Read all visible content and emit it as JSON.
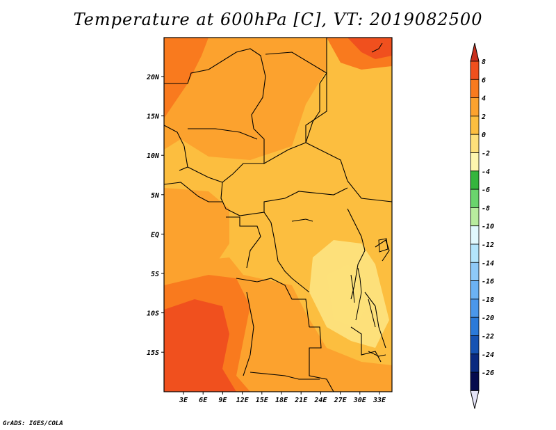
{
  "title": "Temperature at 600hPa [C], VT: 2019082500",
  "credit": "GrADS: IGES/COLA",
  "map": {
    "lat_labels": [
      "20N",
      "15N",
      "10N",
      "5N",
      "EQ",
      "5S",
      "10S",
      "15S"
    ],
    "lon_labels": [
      "3E",
      "6E",
      "9E",
      "12E",
      "15E",
      "18E",
      "21E",
      "24E",
      "27E",
      "30E",
      "33E"
    ],
    "lat_range": [
      -19.5,
      24.5
    ],
    "lon_range": [
      0,
      35
    ]
  },
  "colorbar": {
    "labels": [
      "8",
      "6",
      "4",
      "2",
      "0",
      "-2",
      "-4",
      "-6",
      "-8",
      "-10",
      "-12",
      "-14",
      "-16",
      "-18",
      "-20",
      "-22",
      "-24",
      "-26"
    ],
    "colors": [
      "#c8301e",
      "#f0501e",
      "#f97a1e",
      "#fca22e",
      "#fcbe3f",
      "#fde07a",
      "#fef6ae",
      "#35b53d",
      "#6ad46d",
      "#b8ec9e",
      "#e1f9fd",
      "#b3e5fb",
      "#8ec9f7",
      "#6cb2f3",
      "#4b97ea",
      "#2b7ad9",
      "#1653b3",
      "#0a2a80",
      "#050a4d",
      "#e4e4f7"
    ]
  }
}
